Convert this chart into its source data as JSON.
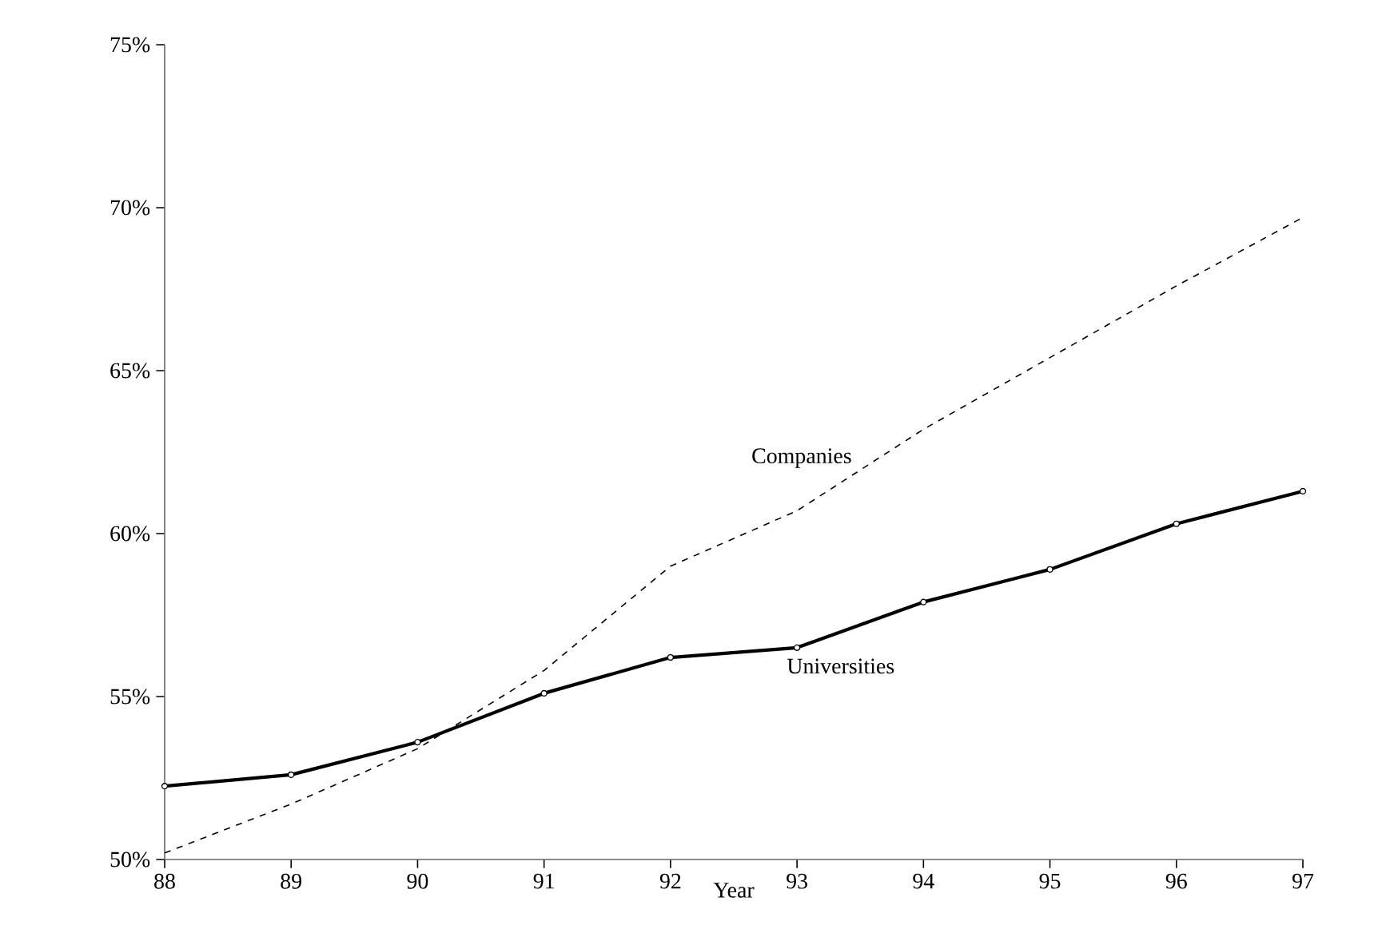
{
  "chart_data": {
    "type": "line",
    "xlabel": "Year",
    "x": [
      88,
      89,
      90,
      91,
      92,
      93,
      94,
      95,
      96,
      97
    ],
    "xlim": [
      88,
      97
    ],
    "xticks": [
      88,
      89,
      90,
      91,
      92,
      93,
      94,
      95,
      96,
      97
    ],
    "ylim": [
      50,
      75
    ],
    "yticks": [
      {
        "value": 50,
        "label": "50%"
      },
      {
        "value": 55,
        "label": "55%"
      },
      {
        "value": 60,
        "label": "60%"
      },
      {
        "value": 65,
        "label": "65%"
      },
      {
        "value": 70,
        "label": "70%"
      },
      {
        "value": 75,
        "label": "75%"
      }
    ],
    "grid": false,
    "legend": false,
    "series": [
      {
        "name": "Universities",
        "color": "#000000",
        "line_style": "solid",
        "marker": "circle",
        "values": [
          52.25,
          52.6,
          53.6,
          55.1,
          56.2,
          56.5,
          57.9,
          58.9,
          60.3,
          61.3
        ]
      },
      {
        "name": "Companies",
        "color": "#000000",
        "line_style": "dashed",
        "marker": "none",
        "values": [
          50.2,
          51.7,
          53.4,
          55.8,
          59.0,
          60.7,
          63.2,
          65.4,
          67.6,
          69.7
        ]
      }
    ]
  }
}
